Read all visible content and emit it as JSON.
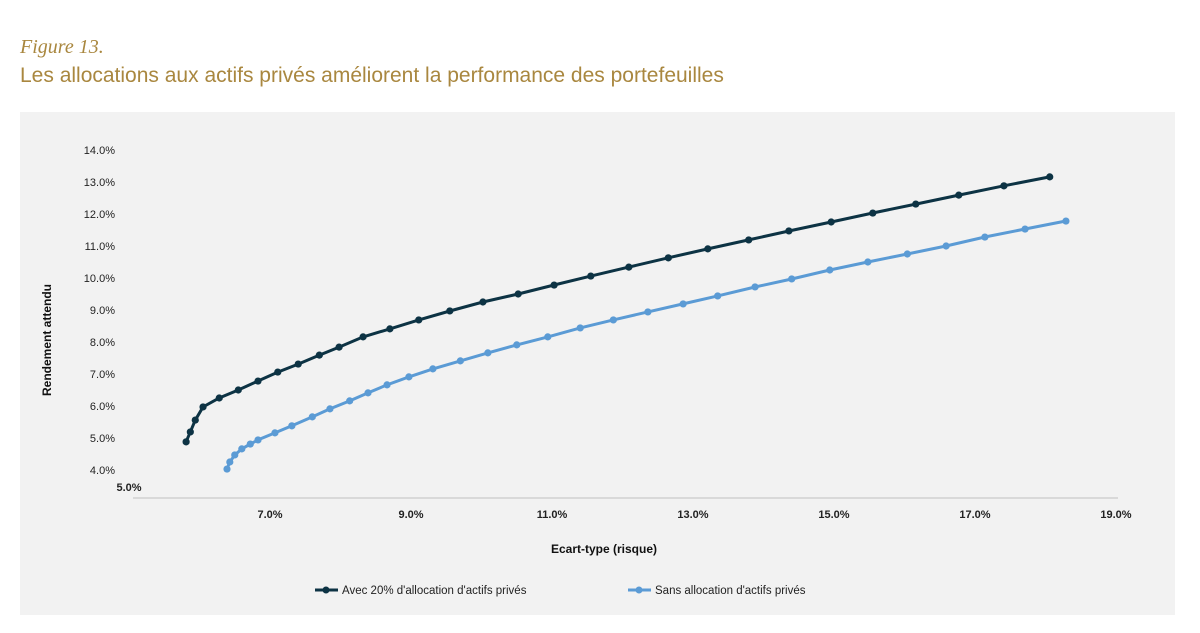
{
  "figure_label": "Figure 13.",
  "figure_title": "Les allocations aux actifs privés améliorent la performance des portefeuilles",
  "chart_data": {
    "type": "line",
    "title": "",
    "xlabel": "Ecart-type (risque)",
    "ylabel": "Rendement attendu",
    "xlim": [
      5.0,
      19.0
    ],
    "ylim": [
      4.0,
      14.0
    ],
    "x_ticks": [
      "5.0%",
      "7.0%",
      "9.0%",
      "11.0%",
      "13.0%",
      "15.0%",
      "17.0%",
      "19.0%"
    ],
    "x_tick_values": [
      5,
      7,
      9,
      11,
      13,
      15,
      17,
      19
    ],
    "y_ticks": [
      "4.0%",
      "5.0%",
      "6.0%",
      "7.0%",
      "8.0%",
      "9.0%",
      "10.0%",
      "11.0%",
      "12.0%",
      "13.0%",
      "14.0%"
    ],
    "y_tick_values": [
      4,
      5,
      6,
      7,
      8,
      9,
      10,
      11,
      12,
      13,
      14
    ],
    "grid": false,
    "legend_position": "bottom",
    "series": [
      {
        "name": "Avec 20% d'allocation d'actifs privés",
        "color": "#0d3344",
        "x": [
          5.81,
          5.87,
          5.94,
          6.05,
          6.28,
          6.55,
          6.83,
          7.11,
          7.4,
          7.7,
          7.98,
          8.32,
          8.7,
          9.11,
          9.55,
          10.02,
          10.52,
          11.03,
          11.55,
          12.09,
          12.65,
          13.21,
          13.79,
          14.36,
          14.96,
          15.55,
          16.16,
          16.77,
          17.41,
          18.06
        ],
        "y": [
          4.88,
          5.19,
          5.56,
          5.97,
          6.25,
          6.5,
          6.78,
          7.06,
          7.31,
          7.59,
          7.84,
          8.16,
          8.41,
          8.69,
          8.97,
          9.25,
          9.5,
          9.78,
          10.06,
          10.34,
          10.63,
          10.91,
          11.19,
          11.47,
          11.75,
          12.03,
          12.31,
          12.59,
          12.88,
          13.16
        ]
      },
      {
        "name": "Sans allocation d'actifs privés",
        "color": "#5b9bd5",
        "x": [
          6.39,
          6.43,
          6.5,
          6.6,
          6.72,
          6.83,
          7.07,
          7.31,
          7.6,
          7.85,
          8.13,
          8.39,
          8.66,
          8.97,
          9.31,
          9.7,
          10.09,
          10.5,
          10.94,
          11.4,
          11.87,
          12.36,
          12.86,
          13.35,
          13.88,
          14.4,
          14.94,
          15.48,
          16.04,
          16.59,
          17.14,
          17.71,
          18.29
        ],
        "y": [
          4.03,
          4.25,
          4.47,
          4.66,
          4.81,
          4.94,
          5.16,
          5.38,
          5.66,
          5.91,
          6.16,
          6.41,
          6.66,
          6.91,
          7.16,
          7.41,
          7.66,
          7.91,
          8.16,
          8.44,
          8.69,
          8.94,
          9.19,
          9.44,
          9.72,
          9.97,
          10.25,
          10.5,
          10.75,
          11.0,
          11.28,
          11.53,
          11.78
        ]
      }
    ]
  }
}
